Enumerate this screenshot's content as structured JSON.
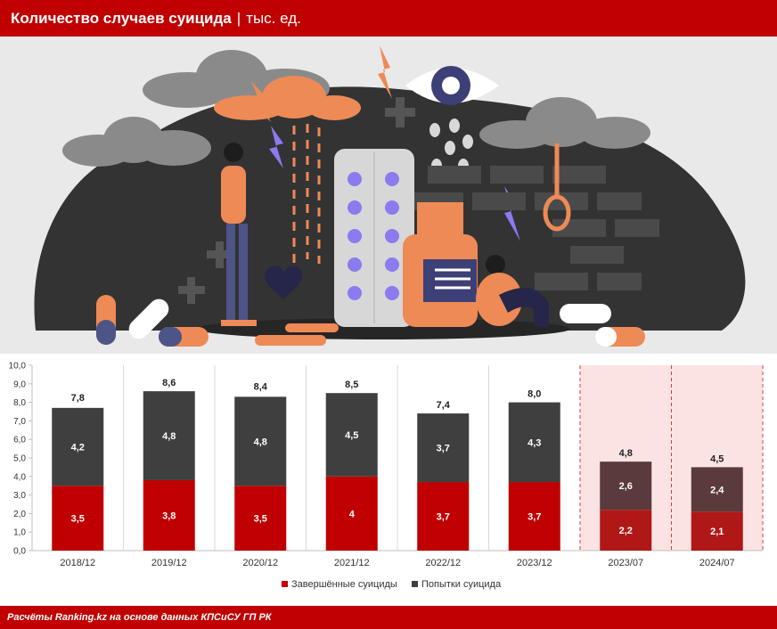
{
  "header": {
    "title": "Количество случаев суицида",
    "separator": "|",
    "unit": "тыс. ед."
  },
  "footer": {
    "source": "Расчёты Ranking.kz на основе данных КПСиСУ ГП РК"
  },
  "chart_data": {
    "type": "bar",
    "stacked": true,
    "categories": [
      "2018/12",
      "2019/12",
      "2020/12",
      "2021/12",
      "2022/12",
      "2023/12",
      "2023/07",
      "2024/07"
    ],
    "series": [
      {
        "name": "Завершённые суициды",
        "values": [
          3.5,
          3.8,
          3.5,
          4,
          3.7,
          3.7,
          2.2,
          2.1
        ],
        "labels": [
          "3,5",
          "3,8",
          "3,5",
          "4",
          "3,7",
          "3,7",
          "2,2",
          "2,1"
        ]
      },
      {
        "name": "Попытки суицида",
        "values": [
          4.2,
          4.8,
          4.8,
          4.5,
          3.7,
          4.3,
          2.6,
          2.4
        ],
        "labels": [
          "4,2",
          "4,8",
          "4,8",
          "4,5",
          "3,7",
          "4,3",
          "2,6",
          "2,4"
        ]
      }
    ],
    "totals": [
      7.8,
      8.6,
      8.4,
      8.5,
      7.4,
      8.0,
      4.8,
      4.5
    ],
    "total_labels": [
      "7,8",
      "8,6",
      "8,4",
      "8,5",
      "7,4",
      "8,0",
      "4,8",
      "4,5"
    ],
    "ylim": [
      0,
      10
    ],
    "yticks": [
      "0,0",
      "1,0",
      "2,0",
      "3,0",
      "4,0",
      "5,0",
      "6,0",
      "7,0",
      "8,0",
      "9,0",
      "10,0"
    ],
    "highlighted_categories": [
      "2023/07",
      "2024/07"
    ],
    "legend_position": "bottom",
    "colors": {
      "completed": "#c00000",
      "completed_partial": "#b01818",
      "attempts": "#3f3f3f",
      "attempts_partial": "#5a3a3a",
      "highlight_bg": "#fbe3e3",
      "highlight_border": "#d04040"
    }
  }
}
